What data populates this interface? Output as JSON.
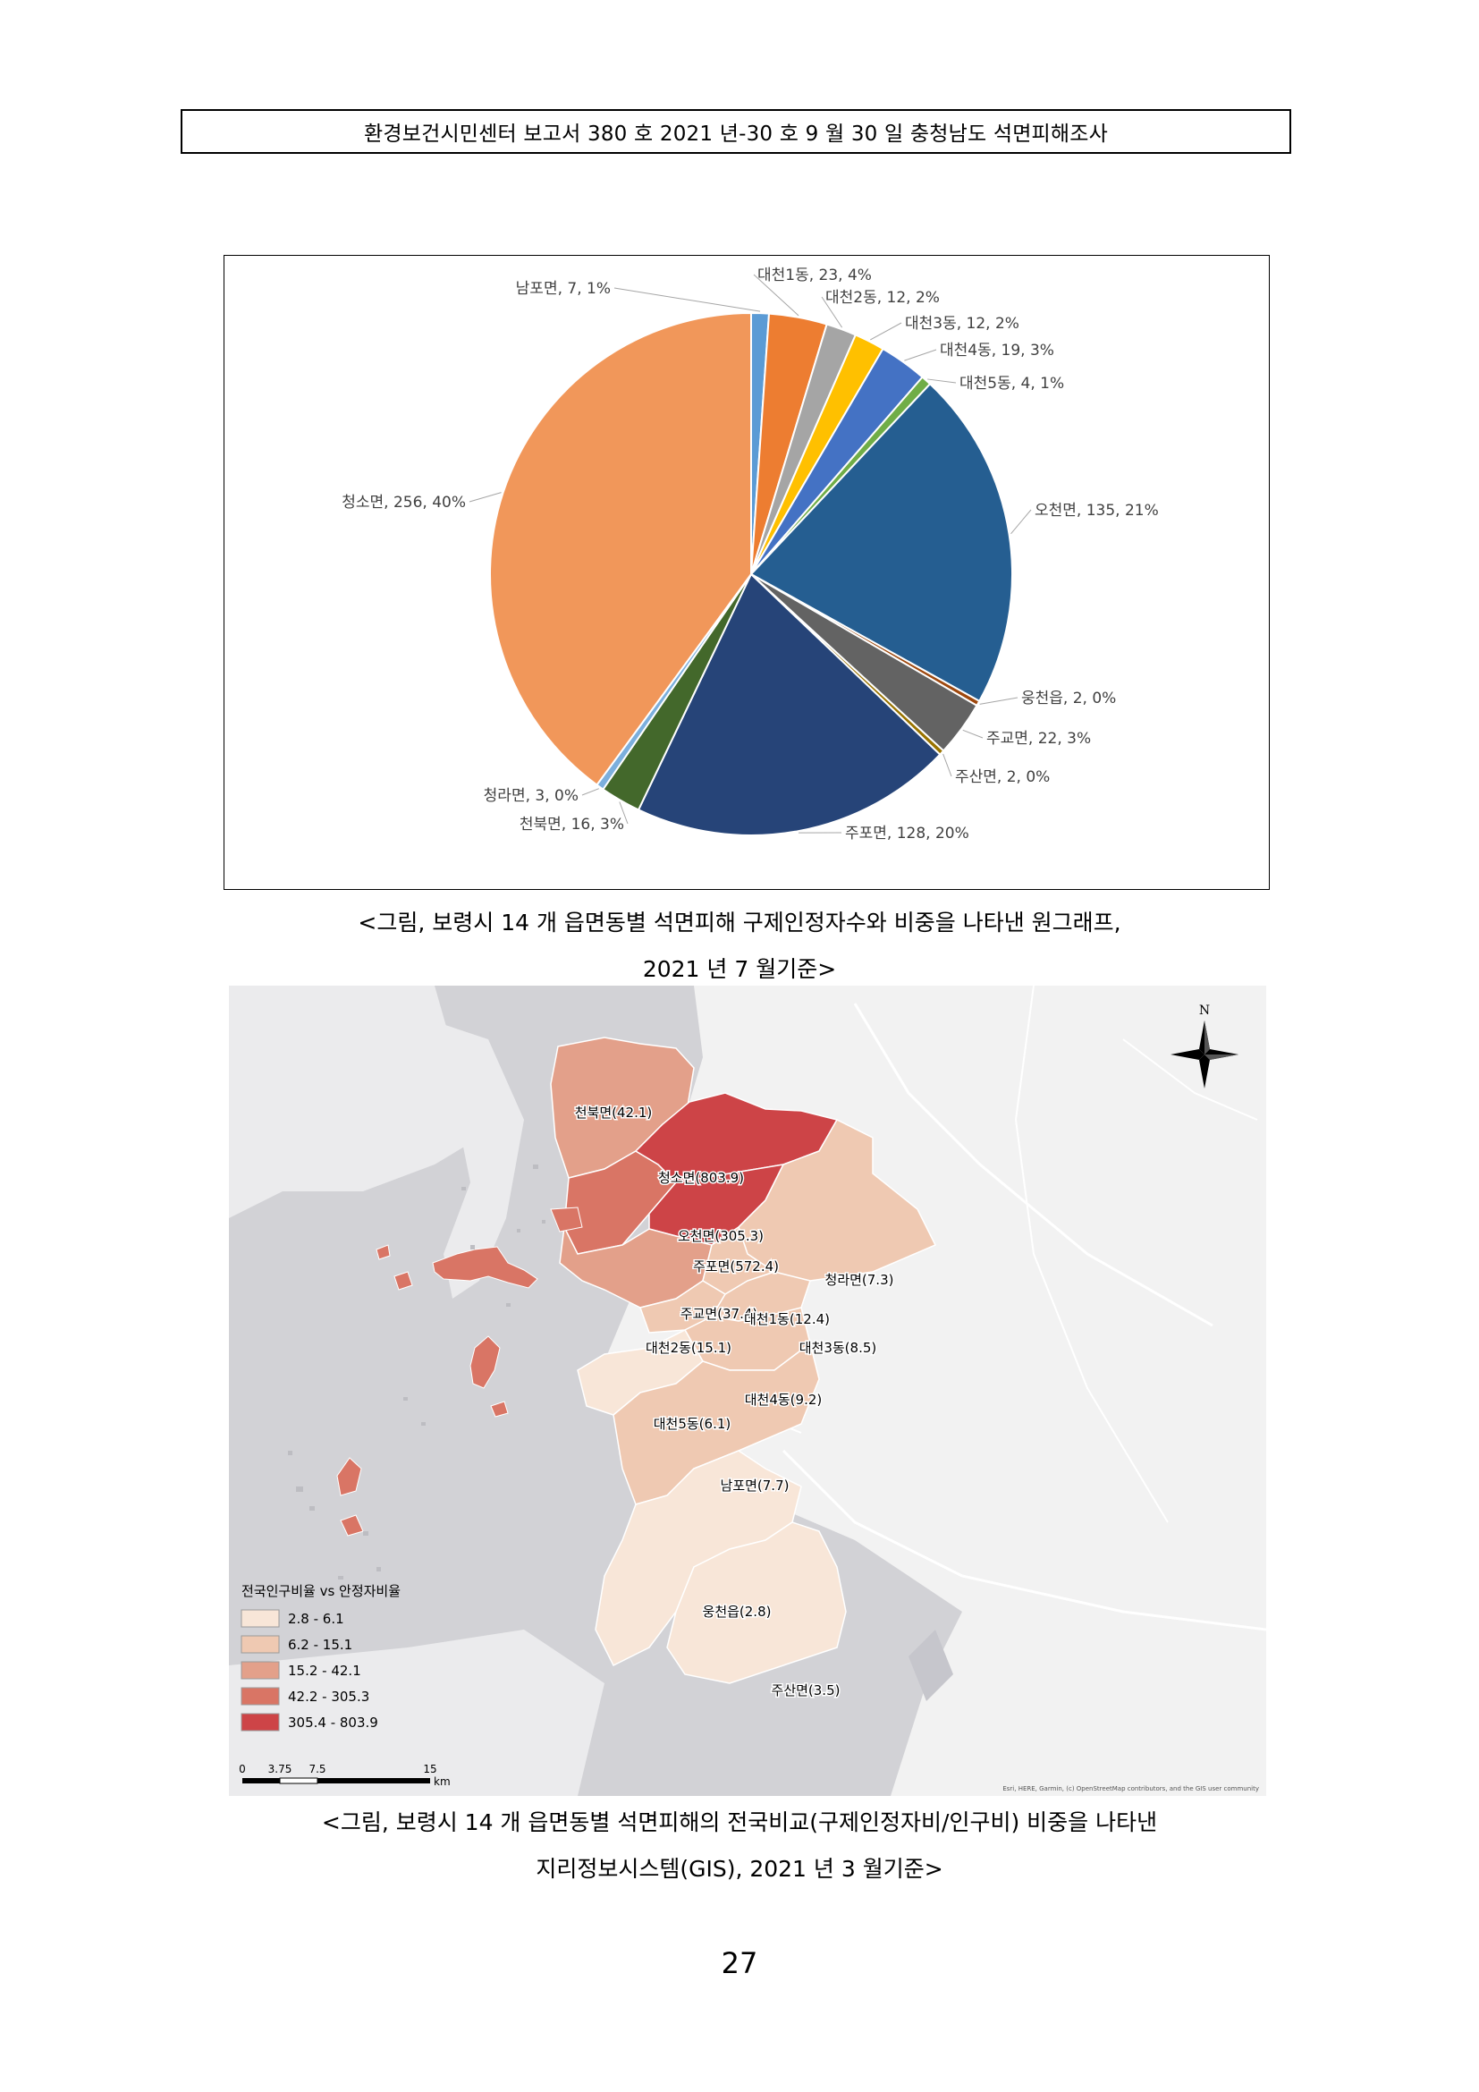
{
  "header": {
    "text": "환경보건시민센터 보고서 380 호 2021 년-30 호 9 월 30 일 충청남도 석면피해조사"
  },
  "chart_data": {
    "type": "pie",
    "title": "",
    "slices": [
      {
        "label": "남포면, 7, 1%",
        "name": "남포면",
        "value": 7,
        "percent": 1,
        "color": "#5b9bd5"
      },
      {
        "label": "대천1동, 23, 4%",
        "name": "대천1동",
        "value": 23,
        "percent": 4,
        "color": "#ed7d31"
      },
      {
        "label": "대천2동, 12, 2%",
        "name": "대천2동",
        "value": 12,
        "percent": 2,
        "color": "#a5a5a5"
      },
      {
        "label": "대천3동, 12, 2%",
        "name": "대천3동",
        "value": 12,
        "percent": 2,
        "color": "#ffc000"
      },
      {
        "label": "대천4동, 19, 3%",
        "name": "대천4동",
        "value": 19,
        "percent": 3,
        "color": "#4472c4"
      },
      {
        "label": "대천5동, 4, 1%",
        "name": "대천5동",
        "value": 4,
        "percent": 1,
        "color": "#70ad47"
      },
      {
        "label": "오천면, 135, 21%",
        "name": "오천면",
        "value": 135,
        "percent": 21,
        "color": "#255e91"
      },
      {
        "label": "웅천읍, 2, 0%",
        "name": "웅천읍",
        "value": 2,
        "percent": 0,
        "color": "#9e480e"
      },
      {
        "label": "주교면, 22, 3%",
        "name": "주교면",
        "value": 22,
        "percent": 3,
        "color": "#636363"
      },
      {
        "label": "주산면, 2, 0%",
        "name": "주산면",
        "value": 2,
        "percent": 0,
        "color": "#997300"
      },
      {
        "label": "주포면, 128, 20%",
        "name": "주포면",
        "value": 128,
        "percent": 20,
        "color": "#264478"
      },
      {
        "label": "천북면, 16, 3%",
        "name": "천북면",
        "value": 16,
        "percent": 3,
        "color": "#43682b"
      },
      {
        "label": "청라면, 3, 0%",
        "name": "청라면",
        "value": 3,
        "percent": 0,
        "color": "#7cafdd"
      },
      {
        "label": "청소면, 256, 40%",
        "name": "청소면",
        "value": 256,
        "percent": 40,
        "color": "#f1975a"
      }
    ]
  },
  "caption1": {
    "line1": "<그림, 보령시 14 개 읍면동별 석면피해 구제인정자수와 비중을 나타낸 원그래프,",
    "line2": "2021 년 7 월기준>"
  },
  "map": {
    "north_label": "N",
    "regions": [
      {
        "label": "천북면(42.1)",
        "color": "#e3a08a"
      },
      {
        "label": "청소면(803.9)",
        "color": "#cd4447"
      },
      {
        "label": "오천면(305.3)",
        "color": "#d97565"
      },
      {
        "label": "주포면(572.4)",
        "color": "#cd4447"
      },
      {
        "label": "청라면(7.3)",
        "color": "#efc9b2"
      },
      {
        "label": "주교면(37.4)",
        "color": "#e3a08a"
      },
      {
        "label": "대천1동(12.4)",
        "color": "#efc9b2"
      },
      {
        "label": "대천2동(15.1)",
        "color": "#efc9b2"
      },
      {
        "label": "대천3동(8.5)",
        "color": "#efc9b2"
      },
      {
        "label": "대천4동(9.2)",
        "color": "#efc9b2"
      },
      {
        "label": "대천5동(6.1)",
        "color": "#f8e6d8"
      },
      {
        "label": "남포면(7.7)",
        "color": "#efc9b2"
      },
      {
        "label": "웅천읍(2.8)",
        "color": "#f8e6d8"
      },
      {
        "label": "주산면(3.5)",
        "color": "#f8e6d8"
      }
    ],
    "legend": {
      "title": "전국인구비율 vs 안정자비율",
      "items": [
        {
          "label": "2.8 - 6.1",
          "color": "#f8e6d8"
        },
        {
          "label": "6.2 - 15.1",
          "color": "#efc9b2"
        },
        {
          "label": "15.2 - 42.1",
          "color": "#e3a08a"
        },
        {
          "label": "42.2 - 305.3",
          "color": "#d97565"
        },
        {
          "label": "305.4 - 803.9",
          "color": "#cd4447"
        }
      ]
    },
    "scale": {
      "ticks": [
        "0",
        "3.75",
        "7.5",
        "15"
      ],
      "unit": "km"
    },
    "attribution": "Esri, HERE, Garmin, (c) OpenStreetMap contributors, and the GIS user community"
  },
  "caption2": {
    "line1": "<그림, 보령시 14 개 읍면동별 석면피해의 전국비교(구제인정자비/인구비) 비중을 나타낸",
    "line2": "지리정보시스템(GIS), 2021 년 3 월기준>"
  },
  "page_number": "27"
}
